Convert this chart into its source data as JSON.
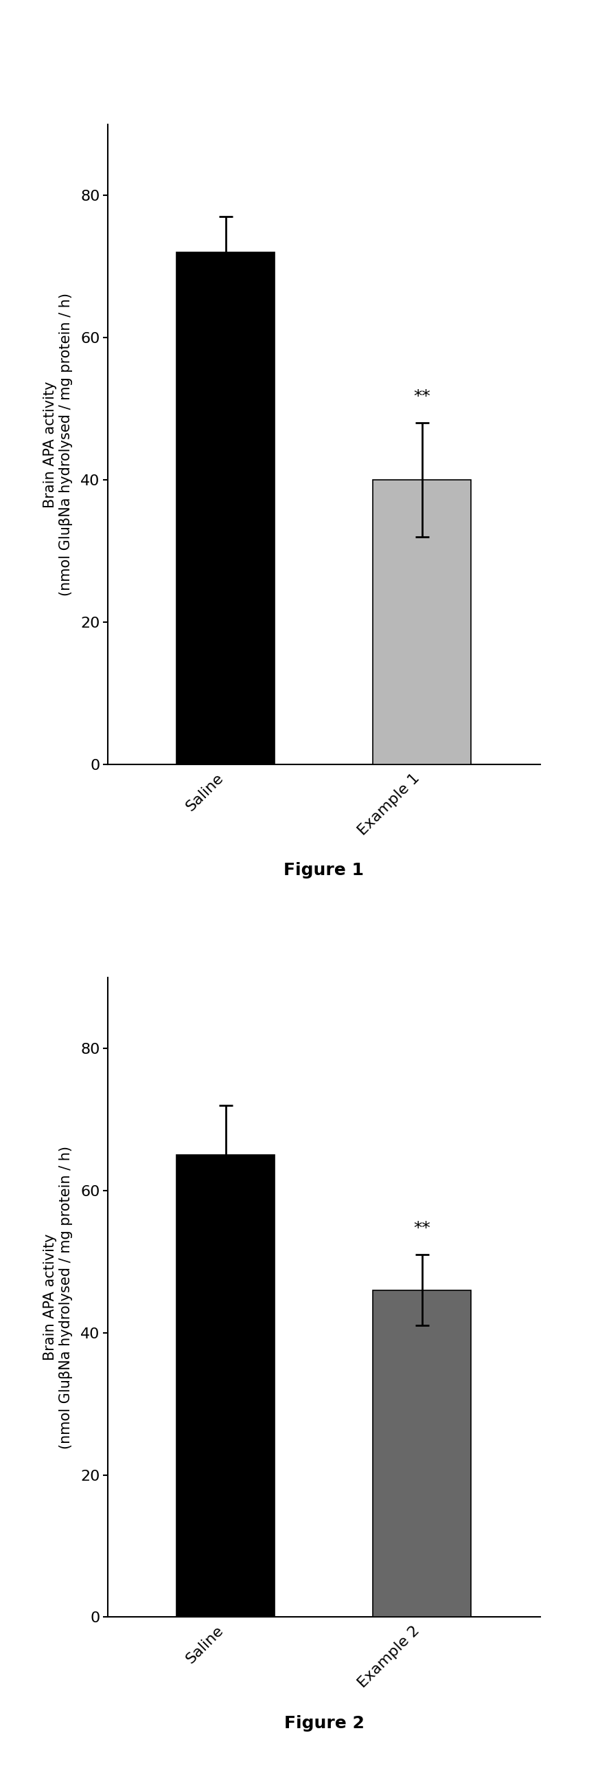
{
  "fig1": {
    "categories": [
      "Saline",
      "Example 1"
    ],
    "values": [
      72,
      40
    ],
    "errors": [
      5,
      8
    ],
    "bar_colors": [
      "#000000",
      "#b8b8b8"
    ],
    "sig_labels": [
      "",
      "**"
    ],
    "title": "Figure 1",
    "ylim": [
      0,
      90
    ],
    "yticks": [
      0,
      20,
      40,
      60,
      80
    ]
  },
  "fig2": {
    "categories": [
      "Saline",
      "Example 2"
    ],
    "values": [
      65,
      46
    ],
    "errors": [
      7,
      5
    ],
    "bar_colors": [
      "#000000",
      "#686868"
    ],
    "sig_labels": [
      "",
      "**"
    ],
    "title": "Figure 2",
    "ylim": [
      0,
      90
    ],
    "yticks": [
      0,
      20,
      40,
      60,
      80
    ]
  },
  "ylabel_line1": "Brain APA activity",
  "ylabel_line2": "(nmol GluβNa hydrolysed / mg protein / h)",
  "bar_width": 0.5,
  "tick_label_fontsize": 16,
  "ylabel_fontsize": 15,
  "sig_fontsize": 18,
  "title_fontsize": 18,
  "ytick_fontsize": 16,
  "capsize": 7,
  "elinewidth": 2,
  "ecapthick": 2,
  "xlim": [
    -0.6,
    1.6
  ]
}
